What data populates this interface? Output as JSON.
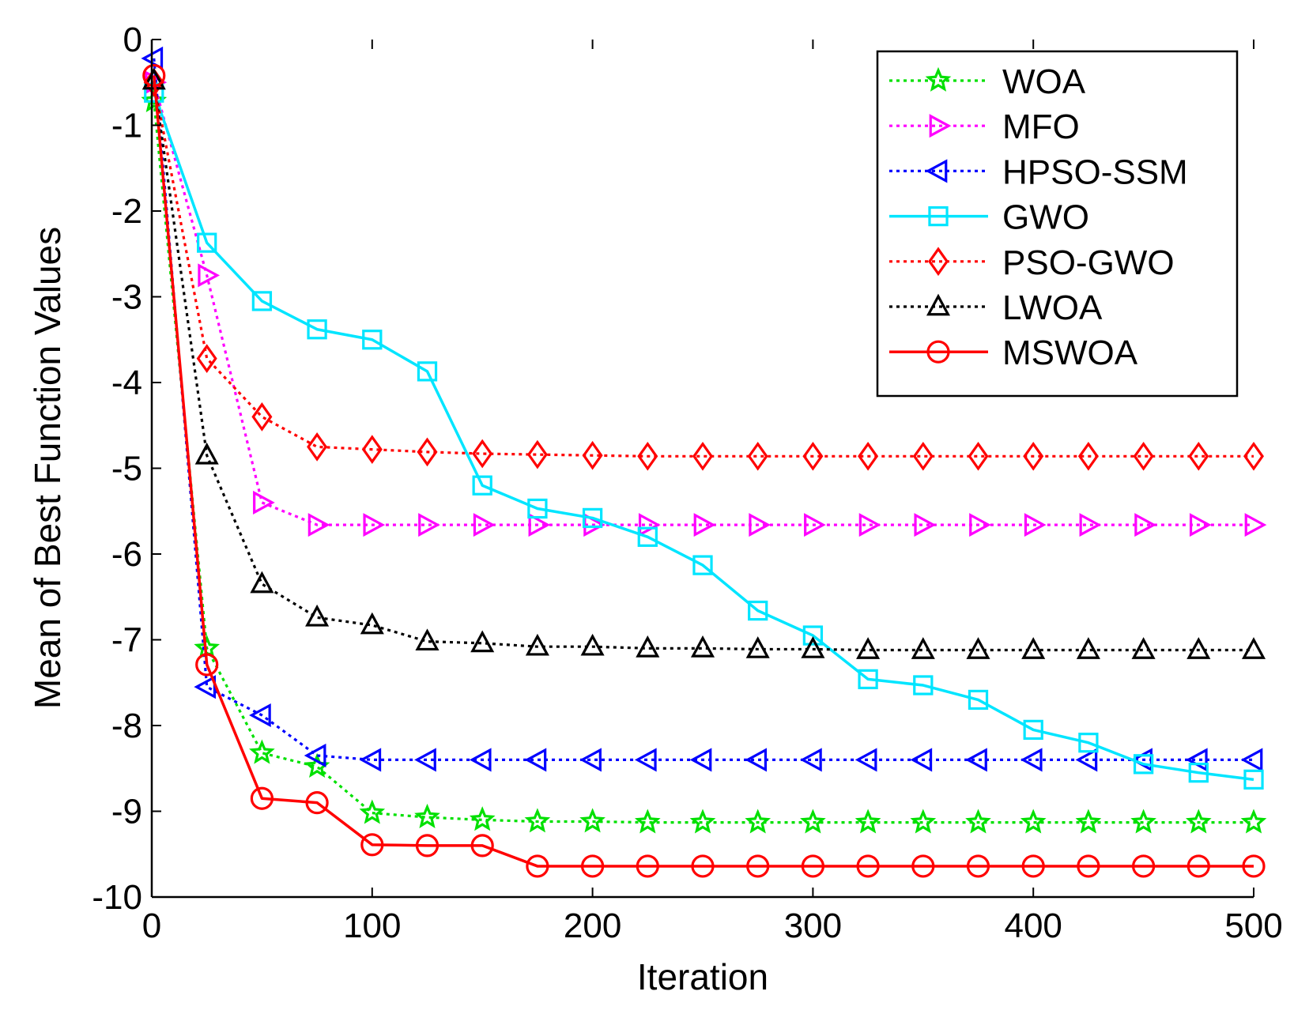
{
  "chart_data": {
    "type": "line",
    "xlabel": "Iteration",
    "ylabel": "Mean of Best Function Values",
    "xlim": [
      0,
      500
    ],
    "ylim": [
      -10,
      0
    ],
    "xticks": [
      0,
      100,
      200,
      300,
      400,
      500
    ],
    "yticks": [
      0,
      -1,
      -2,
      -3,
      -4,
      -5,
      -6,
      -7,
      -8,
      -9,
      -10
    ],
    "grid": false,
    "legend_position": "top-right",
    "x": [
      1,
      25,
      50,
      75,
      100,
      125,
      150,
      175,
      200,
      225,
      250,
      275,
      300,
      325,
      350,
      375,
      400,
      425,
      450,
      475,
      500
    ],
    "series": [
      {
        "name": "WOA",
        "color": "#00e000",
        "line_style": "dotted",
        "marker": "star",
        "values": [
          -0.72,
          -7.1,
          -8.32,
          -8.48,
          -9.02,
          -9.07,
          -9.1,
          -9.12,
          -9.12,
          -9.13,
          -9.13,
          -9.13,
          -9.13,
          -9.13,
          -9.13,
          -9.13,
          -9.13,
          -9.13,
          -9.13,
          -9.13,
          -9.13
        ]
      },
      {
        "name": "MFO",
        "color": "#ff00ff",
        "line_style": "dotted",
        "marker": "triangle-right",
        "values": [
          -0.5,
          -2.75,
          -5.4,
          -5.66,
          -5.66,
          -5.66,
          -5.66,
          -5.66,
          -5.66,
          -5.66,
          -5.66,
          -5.66,
          -5.66,
          -5.66,
          -5.66,
          -5.66,
          -5.66,
          -5.66,
          -5.66,
          -5.66,
          -5.66
        ]
      },
      {
        "name": "HPSO-SSM",
        "color": "#0000ff",
        "line_style": "dotted",
        "marker": "triangle-left",
        "values": [
          -0.22,
          -7.55,
          -7.88,
          -8.35,
          -8.4,
          -8.4,
          -8.4,
          -8.4,
          -8.4,
          -8.4,
          -8.4,
          -8.4,
          -8.4,
          -8.4,
          -8.4,
          -8.4,
          -8.4,
          -8.4,
          -8.4,
          -8.4,
          -8.4
        ]
      },
      {
        "name": "GWO",
        "color": "#00e5ff",
        "line_style": "solid",
        "marker": "square",
        "values": [
          -0.62,
          -2.37,
          -3.05,
          -3.38,
          -3.5,
          -3.87,
          -5.2,
          -5.47,
          -5.58,
          -5.8,
          -6.13,
          -6.66,
          -6.95,
          -7.46,
          -7.53,
          -7.7,
          -8.05,
          -8.2,
          -8.45,
          -8.55,
          -8.63
        ]
      },
      {
        "name": "PSO-GWO",
        "color": "#ff0000",
        "line_style": "dotted",
        "marker": "diamond",
        "values": [
          -0.5,
          -3.72,
          -4.4,
          -4.75,
          -4.78,
          -4.81,
          -4.83,
          -4.84,
          -4.85,
          -4.86,
          -4.86,
          -4.86,
          -4.86,
          -4.86,
          -4.86,
          -4.86,
          -4.86,
          -4.86,
          -4.86,
          -4.86,
          -4.86
        ]
      },
      {
        "name": "LWOA",
        "color": "#000000",
        "line_style": "dotted",
        "marker": "triangle-up",
        "values": [
          -0.48,
          -4.85,
          -6.35,
          -6.74,
          -6.83,
          -7.02,
          -7.04,
          -7.08,
          -7.08,
          -7.1,
          -7.1,
          -7.11,
          -7.11,
          -7.12,
          -7.12,
          -7.12,
          -7.12,
          -7.12,
          -7.12,
          -7.12,
          -7.12
        ]
      },
      {
        "name": "MSWOA",
        "color": "#ff0000",
        "line_style": "solid",
        "marker": "circle",
        "values": [
          -0.42,
          -7.29,
          -8.85,
          -8.9,
          -9.39,
          -9.4,
          -9.4,
          -9.64,
          -9.64,
          -9.64,
          -9.64,
          -9.64,
          -9.64,
          -9.64,
          -9.64,
          -9.64,
          -9.64,
          -9.64,
          -9.64,
          -9.64,
          -9.64
        ]
      }
    ]
  }
}
